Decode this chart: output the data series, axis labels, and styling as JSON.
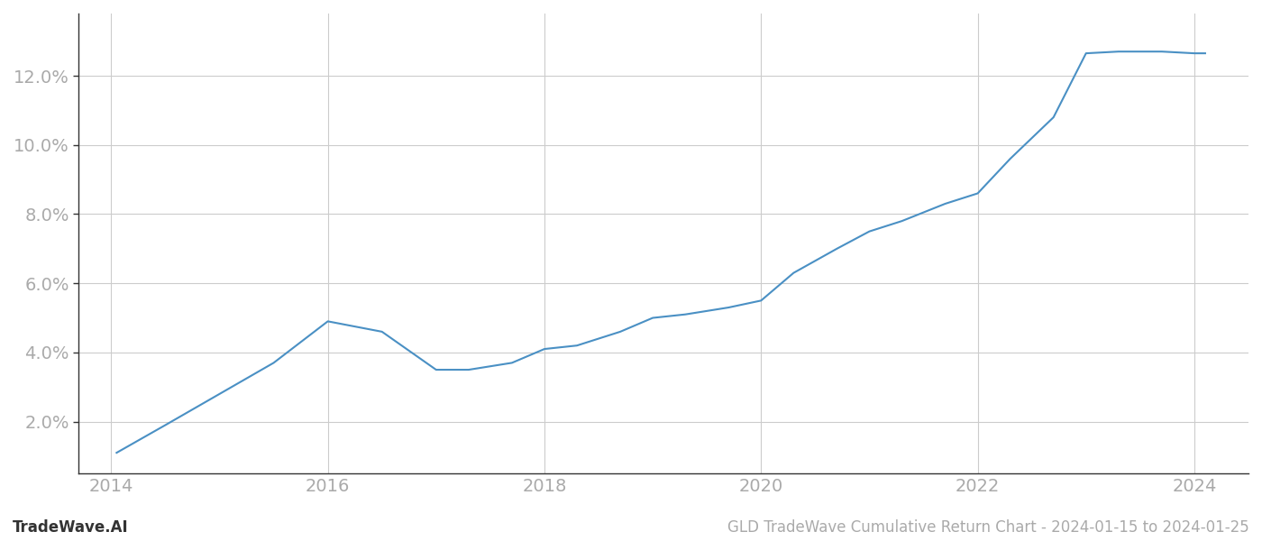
{
  "years": [
    2014.05,
    2014.5,
    2015.0,
    2015.5,
    2016.0,
    2016.5,
    2017.0,
    2017.3,
    2017.7,
    2018.0,
    2018.3,
    2018.7,
    2019.0,
    2019.3,
    2019.7,
    2020.0,
    2020.3,
    2020.7,
    2021.0,
    2021.3,
    2021.7,
    2022.0,
    2022.3,
    2022.7,
    2023.0,
    2023.3,
    2023.7,
    2024.0,
    2024.1
  ],
  "values": [
    1.1,
    1.9,
    2.8,
    3.7,
    4.9,
    4.6,
    3.5,
    3.5,
    3.7,
    4.1,
    4.2,
    4.6,
    5.0,
    5.1,
    5.3,
    5.5,
    6.3,
    7.0,
    7.5,
    7.8,
    8.3,
    8.6,
    9.6,
    10.8,
    12.65,
    12.7,
    12.7,
    12.65,
    12.65
  ],
  "line_color": "#4a90c4",
  "line_width": 1.5,
  "background_color": "#ffffff",
  "grid_color": "#cccccc",
  "footer_left": "TradeWave.AI",
  "footer_right": "GLD TradeWave Cumulative Return Chart - 2024-01-15 to 2024-01-25",
  "xlim": [
    2013.7,
    2024.5
  ],
  "ylim": [
    0.5,
    13.8
  ],
  "yticks": [
    2.0,
    4.0,
    6.0,
    8.0,
    10.0,
    12.0
  ],
  "xticks": [
    2014,
    2016,
    2018,
    2020,
    2022,
    2024
  ],
  "tick_color": "#aaaaaa",
  "tick_fontsize": 14,
  "footer_fontsize": 12,
  "spine_color": "#333333"
}
